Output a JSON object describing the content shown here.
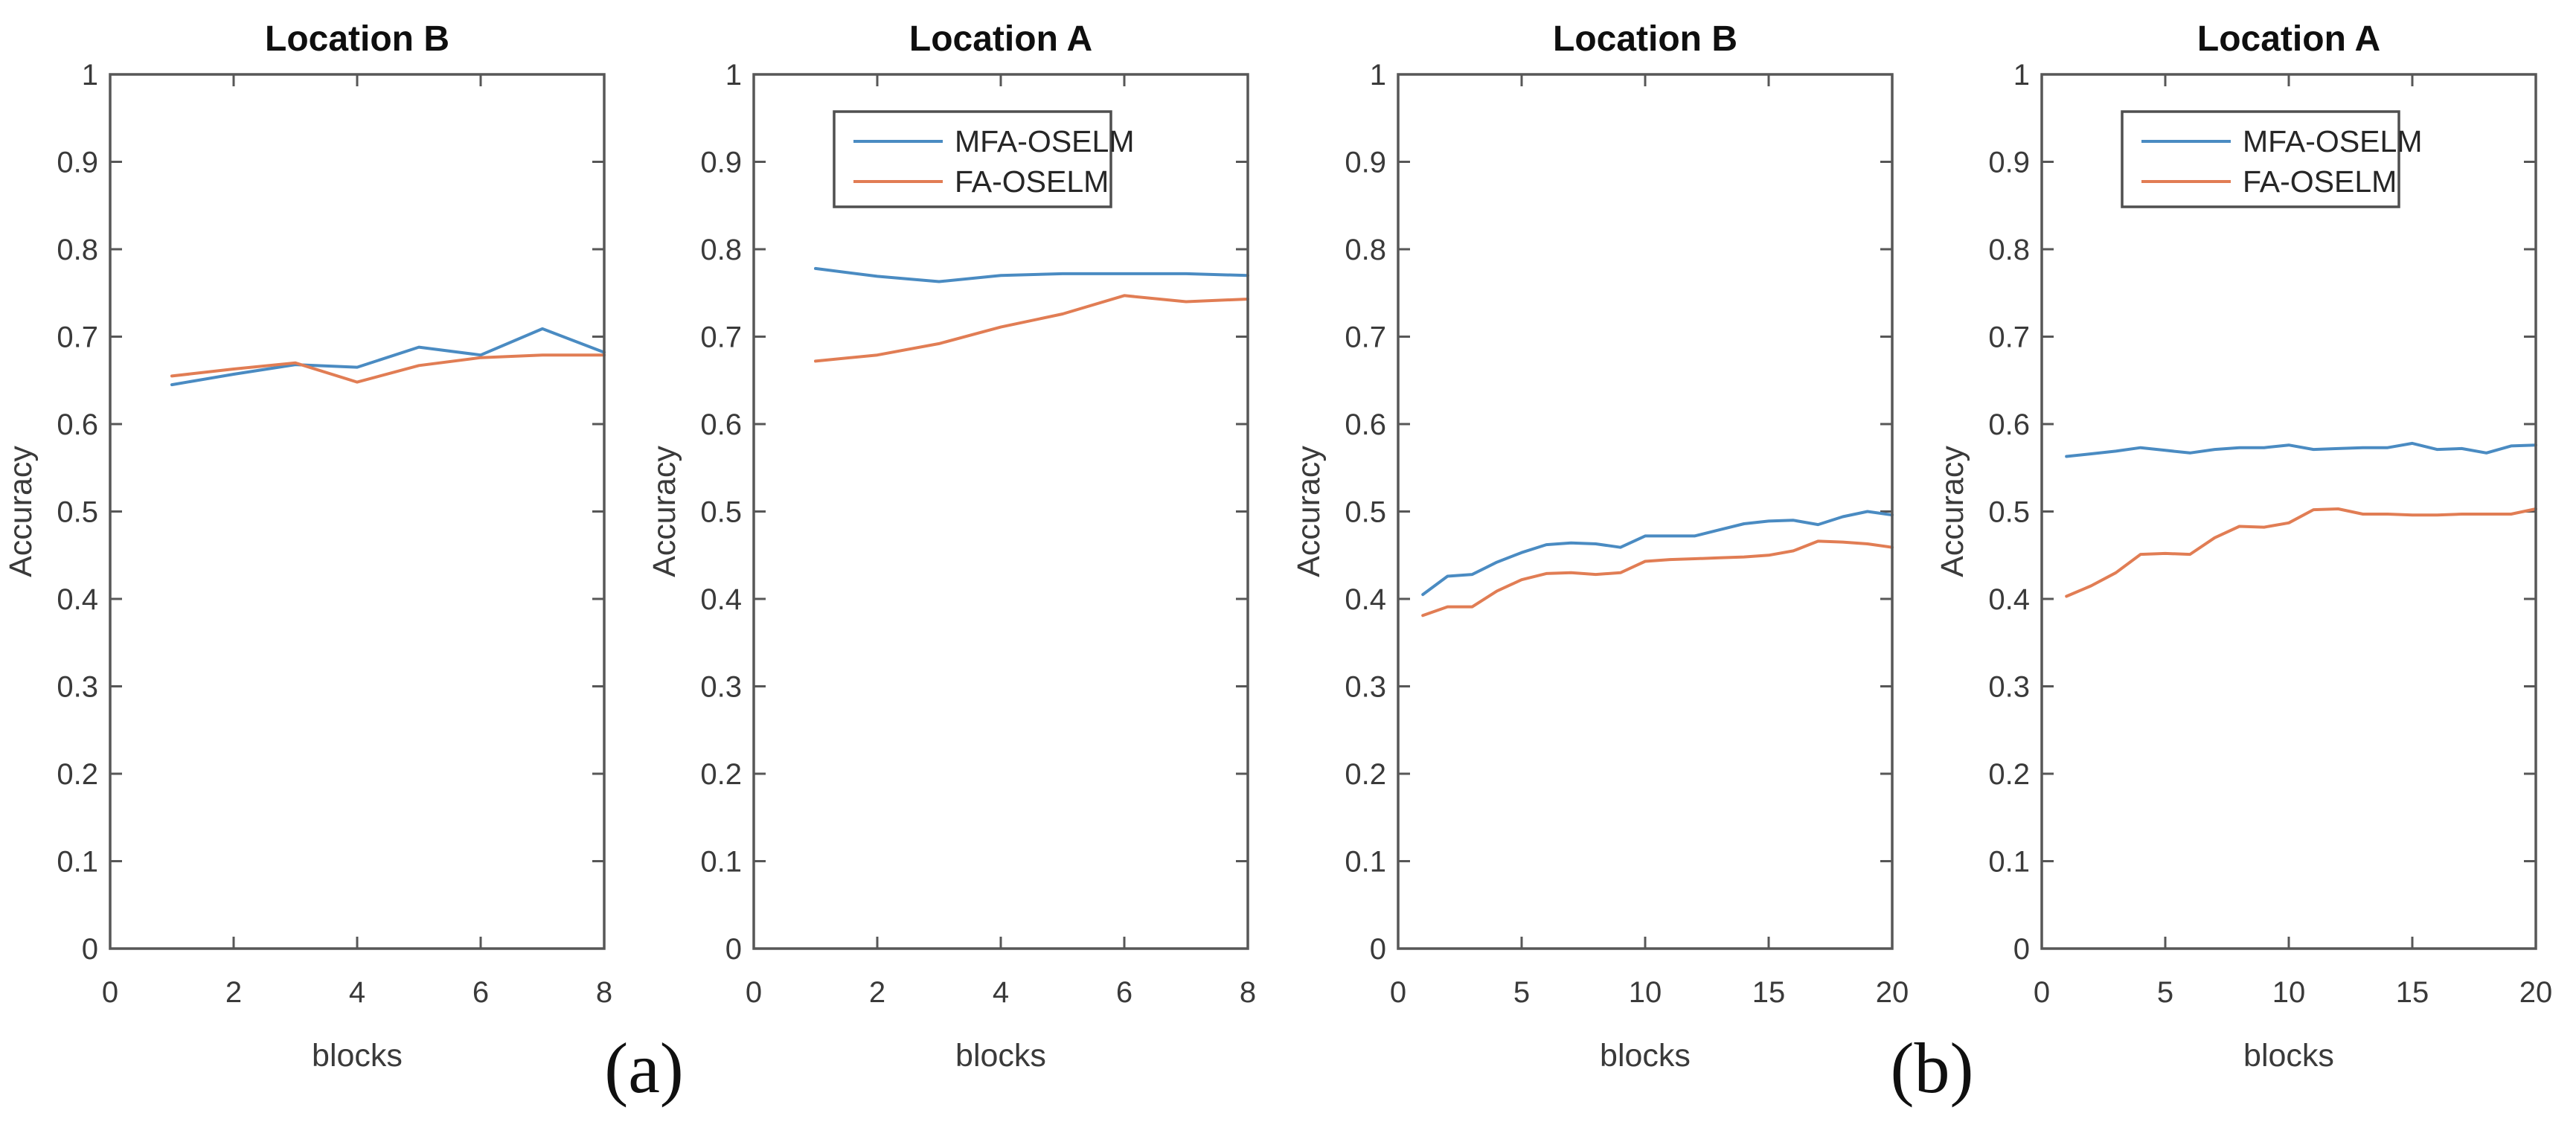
{
  "figure": {
    "caption_a": "(a)",
    "caption_b": "(b)"
  },
  "colors": {
    "mfa_oselm": "#4a8bc2",
    "fa_oselm": "#e17d54",
    "axis": "#575757",
    "tick_text": "#3a3a3a",
    "title_text": "#0f0f0f",
    "legend_border": "#4f4f4f",
    "background": "#ffffff"
  },
  "chart_data": [
    {
      "id": "a-location-b",
      "type": "line",
      "title": "Location B",
      "xlabel": "blocks",
      "ylabel": "Accuracy",
      "xlim": [
        0,
        8
      ],
      "ylim": [
        0,
        1
      ],
      "xticks": [
        0,
        2,
        4,
        6,
        8
      ],
      "yticks": [
        0,
        0.1,
        0.2,
        0.3,
        0.4,
        0.5,
        0.6,
        0.7,
        0.8,
        0.9,
        1
      ],
      "grid": false,
      "legend": false,
      "x": [
        1,
        2,
        3,
        4,
        5,
        6,
        7,
        8
      ],
      "series": [
        {
          "name": "MFA-OSELM",
          "color_key": "mfa_oselm",
          "values": [
            0.645,
            0.657,
            0.668,
            0.665,
            0.688,
            0.679,
            0.709,
            0.682
          ]
        },
        {
          "name": "FA-OSELM",
          "color_key": "fa_oselm",
          "values": [
            0.655,
            0.663,
            0.67,
            0.648,
            0.667,
            0.676,
            0.679,
            0.679
          ]
        }
      ]
    },
    {
      "id": "a-location-a",
      "type": "line",
      "title": "Location A",
      "xlabel": "blocks",
      "ylabel": "Accuracy",
      "xlim": [
        0,
        8
      ],
      "ylim": [
        0,
        1
      ],
      "xticks": [
        0,
        2,
        4,
        6,
        8
      ],
      "yticks": [
        0,
        0.1,
        0.2,
        0.3,
        0.4,
        0.5,
        0.6,
        0.7,
        0.8,
        0.9,
        1
      ],
      "grid": false,
      "legend": true,
      "x": [
        1,
        2,
        3,
        4,
        5,
        6,
        7,
        8
      ],
      "series": [
        {
          "name": "MFA-OSELM",
          "color_key": "mfa_oselm",
          "values": [
            0.778,
            0.769,
            0.763,
            0.77,
            0.772,
            0.772,
            0.772,
            0.77
          ]
        },
        {
          "name": "FA-OSELM",
          "color_key": "fa_oselm",
          "values": [
            0.672,
            0.679,
            0.692,
            0.711,
            0.726,
            0.747,
            0.74,
            0.743
          ]
        }
      ]
    },
    {
      "id": "b-location-b",
      "type": "line",
      "title": "Location B",
      "xlabel": "blocks",
      "ylabel": "Accuracy",
      "xlim": [
        0,
        20
      ],
      "ylim": [
        0,
        1
      ],
      "xticks": [
        0,
        5,
        10,
        15,
        20
      ],
      "yticks": [
        0,
        0.1,
        0.2,
        0.3,
        0.4,
        0.5,
        0.6,
        0.7,
        0.8,
        0.9,
        1
      ],
      "grid": false,
      "legend": false,
      "x": [
        1,
        2,
        3,
        4,
        5,
        6,
        7,
        8,
        9,
        10,
        11,
        12,
        13,
        14,
        15,
        16,
        17,
        18,
        19,
        20
      ],
      "series": [
        {
          "name": "MFA-OSELM",
          "color_key": "mfa_oselm",
          "values": [
            0.405,
            0.426,
            0.428,
            0.442,
            0.453,
            0.462,
            0.464,
            0.463,
            0.459,
            0.472,
            0.472,
            0.472,
            0.479,
            0.486,
            0.489,
            0.49,
            0.485,
            0.494,
            0.5,
            0.496
          ]
        },
        {
          "name": "FA-OSELM",
          "color_key": "fa_oselm",
          "values": [
            0.381,
            0.391,
            0.391,
            0.409,
            0.422,
            0.429,
            0.43,
            0.428,
            0.43,
            0.443,
            0.445,
            0.446,
            0.447,
            0.448,
            0.45,
            0.455,
            0.466,
            0.465,
            0.463,
            0.459
          ]
        }
      ]
    },
    {
      "id": "b-location-a",
      "type": "line",
      "title": "Location A",
      "xlabel": "blocks",
      "ylabel": "Accuracy",
      "xlim": [
        0,
        20
      ],
      "ylim": [
        0,
        1
      ],
      "xticks": [
        0,
        5,
        10,
        15,
        20
      ],
      "yticks": [
        0,
        0.1,
        0.2,
        0.3,
        0.4,
        0.5,
        0.6,
        0.7,
        0.8,
        0.9,
        1
      ],
      "grid": false,
      "legend": true,
      "x": [
        1,
        2,
        3,
        4,
        5,
        6,
        7,
        8,
        9,
        10,
        11,
        12,
        13,
        14,
        15,
        16,
        17,
        18,
        19,
        20
      ],
      "series": [
        {
          "name": "MFA-OSELM",
          "color_key": "mfa_oselm",
          "values": [
            0.563,
            0.566,
            0.569,
            0.573,
            0.57,
            0.567,
            0.571,
            0.573,
            0.573,
            0.576,
            0.571,
            0.572,
            0.573,
            0.573,
            0.578,
            0.571,
            0.572,
            0.567,
            0.575,
            0.576
          ]
        },
        {
          "name": "FA-OSELM",
          "color_key": "fa_oselm",
          "values": [
            0.403,
            0.415,
            0.43,
            0.451,
            0.452,
            0.451,
            0.47,
            0.483,
            0.482,
            0.487,
            0.502,
            0.503,
            0.497,
            0.497,
            0.496,
            0.496,
            0.497,
            0.497,
            0.497,
            0.503
          ]
        }
      ]
    }
  ]
}
